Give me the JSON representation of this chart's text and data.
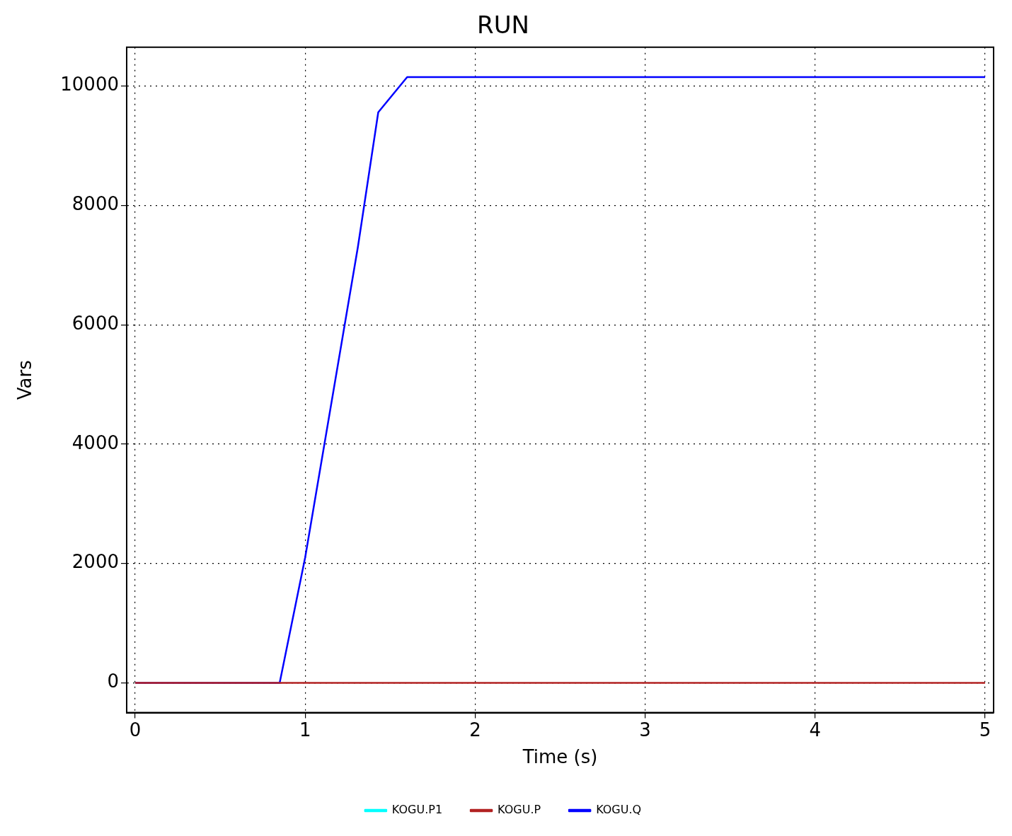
{
  "chart_data": {
    "type": "line",
    "title": "RUN",
    "xlabel": "Time (s)",
    "ylabel": "Vars",
    "xlim": [
      -0.05,
      5.05
    ],
    "xticks": [
      0,
      1,
      2,
      3,
      4,
      5
    ],
    "ylim": [
      -500,
      10650
    ],
    "yticks": [
      0,
      2000,
      4000,
      6000,
      8000,
      10000
    ],
    "grid": true,
    "legend": "bottom",
    "marker": "none",
    "line_style": "solid",
    "series": [
      {
        "name": "KOGU.P1",
        "color": "#00ffff"
      },
      {
        "name": "KOGU.P",
        "color": "#b22222",
        "x": [
          0,
          5
        ],
        "values": [
          0,
          0
        ]
      },
      {
        "name": "KOGU.Q",
        "color": "#0000ff",
        "x": [
          0,
          0.85,
          1.0,
          1.31,
          1.43,
          1.6,
          5.0
        ],
        "values": [
          0,
          0,
          2100,
          7300,
          9560,
          10150,
          10150
        ]
      }
    ]
  }
}
